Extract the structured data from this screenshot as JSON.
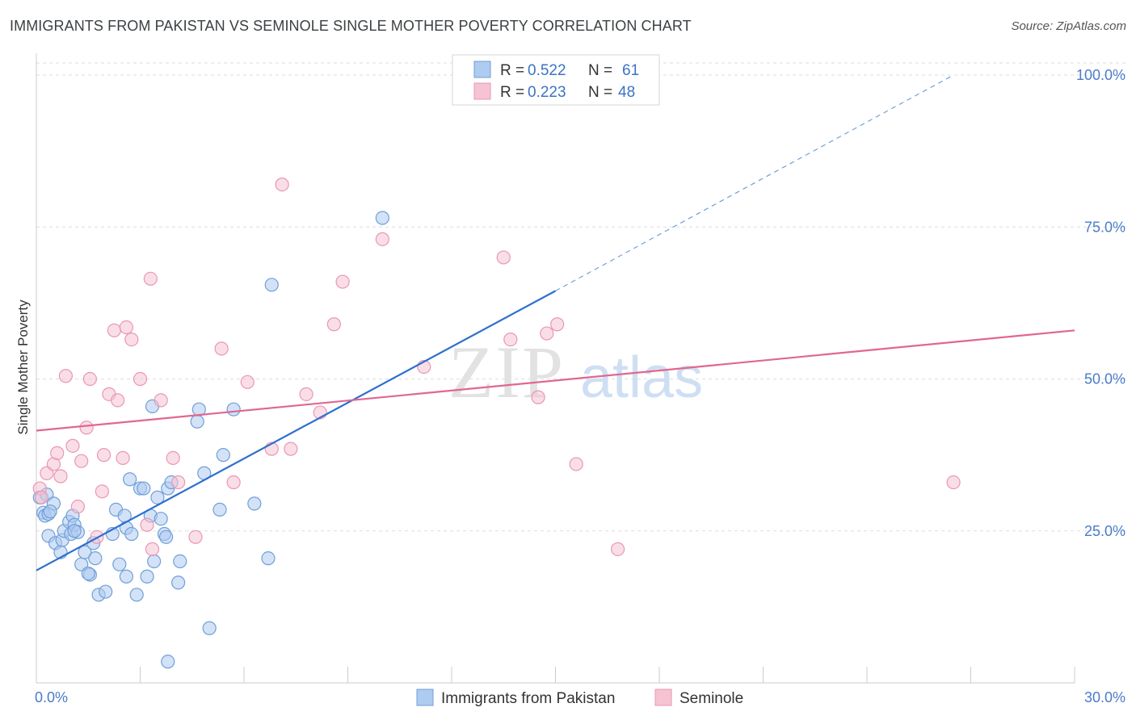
{
  "title": "IMMIGRANTS FROM PAKISTAN VS SEMINOLE SINGLE MOTHER POVERTY CORRELATION CHART",
  "source": "Source: ZipAtlas.com",
  "watermark": {
    "zip": "ZIP",
    "atlas": "atlas"
  },
  "colors": {
    "blue_fill": "#aecbf0",
    "blue_stroke": "#6f9fd8",
    "blue_line": "#2e6fce",
    "pink_fill": "#f6c3d3",
    "pink_stroke": "#e997b2",
    "pink_line": "#e0678f",
    "grid": "#dddddd",
    "axis_text": "#4a7cc9"
  },
  "legend": {
    "rows": [
      {
        "r_label": "R =",
        "r_value": "0.522",
        "n_label": "N =",
        "n_value": "61",
        "series": "blue"
      },
      {
        "r_label": "R =",
        "r_value": "0.223",
        "n_label": "N =",
        "n_value": "48",
        "series": "pink"
      }
    ]
  },
  "chart_data": {
    "type": "scatter",
    "title": "IMMIGRANTS FROM PAKISTAN VS SEMINOLE SINGLE MOTHER POVERTY CORRELATION CHART",
    "xlabel": "",
    "ylabel": "Single Mother Poverty",
    "xlim": [
      0,
      30
    ],
    "ylim": [
      0,
      102
    ],
    "x_tick_labels": [
      "0.0%",
      "30.0%"
    ],
    "y_ticks": [
      25,
      50,
      75,
      100
    ],
    "y_tick_labels": [
      "25.0%",
      "50.0%",
      "75.0%",
      "100.0%"
    ],
    "grid": true,
    "legend_position": "top-center",
    "series": [
      {
        "name": "Immigrants from Pakistan",
        "color": "blue",
        "trend": {
          "x0": 0,
          "y0": 18.5,
          "x1": 15,
          "y1": 64.5,
          "dashed_to_x": 26.5,
          "dashed_to_y": 100
        },
        "points": [
          [
            0.1,
            30.5
          ],
          [
            0.2,
            28.0
          ],
          [
            0.25,
            27.5
          ],
          [
            0.3,
            31.0
          ],
          [
            0.35,
            27.8
          ],
          [
            0.5,
            29.5
          ],
          [
            0.4,
            28.2
          ],
          [
            0.35,
            24.2
          ],
          [
            0.55,
            23.0
          ],
          [
            0.7,
            21.5
          ],
          [
            0.75,
            23.5
          ],
          [
            0.8,
            25.0
          ],
          [
            1.0,
            24.5
          ],
          [
            0.95,
            26.5
          ],
          [
            1.05,
            27.5
          ],
          [
            1.1,
            26.0
          ],
          [
            1.2,
            24.8
          ],
          [
            1.3,
            19.5
          ],
          [
            1.4,
            21.5
          ],
          [
            1.55,
            17.8
          ],
          [
            1.5,
            18.0
          ],
          [
            1.65,
            23.0
          ],
          [
            1.7,
            20.5
          ],
          [
            1.8,
            14.5
          ],
          [
            2.0,
            15.0
          ],
          [
            2.2,
            24.5
          ],
          [
            2.3,
            28.5
          ],
          [
            2.4,
            19.5
          ],
          [
            2.55,
            27.5
          ],
          [
            2.6,
            25.5
          ],
          [
            2.6,
            17.5
          ],
          [
            2.75,
            24.5
          ],
          [
            2.7,
            33.5
          ],
          [
            2.9,
            14.5
          ],
          [
            3.0,
            32.0
          ],
          [
            3.1,
            32.0
          ],
          [
            3.2,
            17.5
          ],
          [
            3.3,
            27.5
          ],
          [
            3.35,
            45.5
          ],
          [
            3.4,
            20.0
          ],
          [
            3.5,
            30.5
          ],
          [
            3.6,
            27.0
          ],
          [
            3.7,
            24.5
          ],
          [
            3.75,
            24.0
          ],
          [
            3.8,
            32.0
          ],
          [
            3.9,
            33.0
          ],
          [
            3.8,
            3.5
          ],
          [
            4.1,
            16.5
          ],
          [
            4.15,
            20.0
          ],
          [
            4.65,
            43.0
          ],
          [
            4.7,
            45.0
          ],
          [
            4.85,
            34.5
          ],
          [
            5.0,
            9.0
          ],
          [
            5.3,
            28.5
          ],
          [
            5.4,
            37.5
          ],
          [
            5.7,
            45.0
          ],
          [
            6.3,
            29.5
          ],
          [
            6.7,
            20.5
          ],
          [
            6.8,
            65.5
          ],
          [
            10.0,
            76.5
          ],
          [
            1.1,
            25.0
          ]
        ]
      },
      {
        "name": "Seminole",
        "color": "pink",
        "trend": {
          "x0": 0,
          "y0": 41.5,
          "x1": 30,
          "y1": 58.0
        },
        "points": [
          [
            0.1,
            32.0
          ],
          [
            0.15,
            30.5
          ],
          [
            0.3,
            34.5
          ],
          [
            0.5,
            36.0
          ],
          [
            0.6,
            37.8
          ],
          [
            0.7,
            34.0
          ],
          [
            0.85,
            50.5
          ],
          [
            1.05,
            39.0
          ],
          [
            1.2,
            29.0
          ],
          [
            1.3,
            36.5
          ],
          [
            1.45,
            42.0
          ],
          [
            1.55,
            50.0
          ],
          [
            1.75,
            24.0
          ],
          [
            1.9,
            31.5
          ],
          [
            1.95,
            37.5
          ],
          [
            2.1,
            47.5
          ],
          [
            2.25,
            58.0
          ],
          [
            2.35,
            46.5
          ],
          [
            2.5,
            37.0
          ],
          [
            2.6,
            58.5
          ],
          [
            2.75,
            56.5
          ],
          [
            3.0,
            50.0
          ],
          [
            3.2,
            26.0
          ],
          [
            3.35,
            22.0
          ],
          [
            3.3,
            66.5
          ],
          [
            3.6,
            46.5
          ],
          [
            3.95,
            37.0
          ],
          [
            4.1,
            33.0
          ],
          [
            4.6,
            24.0
          ],
          [
            5.35,
            55.0
          ],
          [
            5.7,
            33.0
          ],
          [
            6.1,
            49.5
          ],
          [
            6.8,
            38.5
          ],
          [
            7.1,
            82.0
          ],
          [
            7.35,
            38.5
          ],
          [
            7.8,
            47.5
          ],
          [
            8.2,
            44.5
          ],
          [
            8.6,
            59.0
          ],
          [
            8.85,
            66.0
          ],
          [
            10.0,
            73.0
          ],
          [
            11.2,
            52.0
          ],
          [
            13.5,
            70.0
          ],
          [
            13.7,
            56.5
          ],
          [
            14.5,
            47.0
          ],
          [
            14.75,
            57.5
          ],
          [
            15.05,
            59.0
          ],
          [
            15.6,
            36.0
          ],
          [
            16.8,
            22.0
          ]
        ]
      }
    ],
    "extra_points": [
      [
        26.5,
        33.0
      ]
    ]
  },
  "bottom_legend": [
    {
      "label": "Immigrants from Pakistan",
      "series": "blue"
    },
    {
      "label": "Seminole",
      "series": "pink"
    }
  ]
}
